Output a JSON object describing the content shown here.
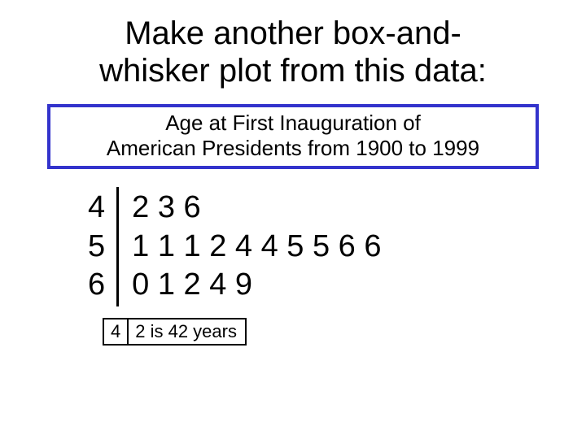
{
  "title_line1": "Make another box-and-",
  "title_line2": "whisker plot from this data:",
  "subtitle_line1": "Age at First Inauguration of",
  "subtitle_line2": "American Presidents from 1900 to 1999",
  "subtitle_border_color": "#3333cc",
  "stemleaf": {
    "type": "stem-and-leaf",
    "stems": [
      "4",
      "5",
      "6"
    ],
    "leaves": [
      "2 3 6",
      "1 1 1 2 4 4 5 5 6 6",
      "0 1 2 4 9"
    ],
    "stem_border_color": "#000000",
    "font_size_pt": 38,
    "text_color": "#000000"
  },
  "key": {
    "stem": "4",
    "rest": "2 is 42 years",
    "border_color": "#000000",
    "font_size_pt": 22
  },
  "background_color": "#ffffff"
}
